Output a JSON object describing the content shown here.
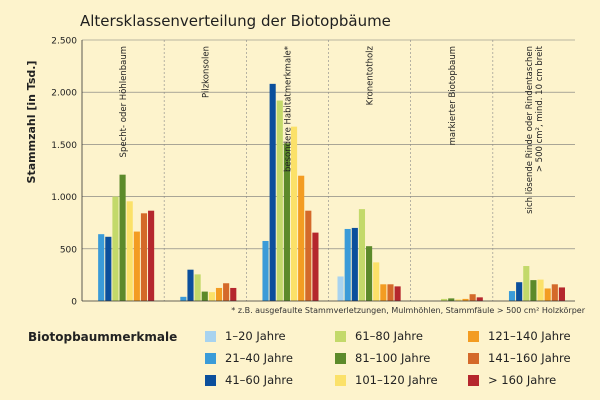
{
  "chart_data": {
    "type": "bar",
    "title": "Altersklassenverteilung der Biotopbäume",
    "ylabel": "Stammzahl [in Tsd.]",
    "xlabel": "",
    "ylim": [
      0,
      2500
    ],
    "yticks": [
      0,
      500,
      1000,
      1500,
      2000,
      2500
    ],
    "ytick_labels": [
      "0",
      "500",
      "1.000",
      "1.500",
      "2.000",
      "2.500"
    ],
    "grid": true,
    "categories": [
      "Specht- oder Höhlenbaum",
      "Pilzkonsolen",
      "besondere Habitatmerkmale*",
      "Kronentotholz",
      "markierter Biotopbaum",
      "sich lösende Rinde oder Rindentaschen > 500 cm², mind. 10 cm breit"
    ],
    "category_label_lines": [
      [
        "Specht- oder Höhlenbaum"
      ],
      [
        "Pilzkonsolen"
      ],
      [
        "besondere Habitatmerkmale*"
      ],
      [
        "Kronentotholz"
      ],
      [
        "markierter Biotopbaum"
      ],
      [
        "sich lösende Rinde oder Rindentaschen",
        "> 500 cm², mind. 10 cm breit"
      ]
    ],
    "footnote": "* z.B. ausgefaulte Stammverletzungen, Mulmhöhlen, Stammfäule > 500 cm² Holzkörper",
    "legend_title": "Biotopbaummerkmale",
    "legend_placement": "bottom",
    "series": [
      {
        "name": "1–20 Jahre",
        "color": "#a8d3ef",
        "values": [
          0,
          0,
          0,
          235,
          0,
          0
        ]
      },
      {
        "name": "21–40 Jahre",
        "color": "#3a9bd8",
        "values": [
          640,
          40,
          575,
          690,
          0,
          95
        ]
      },
      {
        "name": "41–60 Jahre",
        "color": "#0b4f9c",
        "values": [
          615,
          300,
          2080,
          700,
          0,
          180
        ]
      },
      {
        "name": "61–80 Jahre",
        "color": "#c3d96a",
        "values": [
          1000,
          255,
          1920,
          880,
          20,
          335
        ]
      },
      {
        "name": "81–100 Jahre",
        "color": "#5c8a2a",
        "values": [
          1210,
          90,
          1510,
          525,
          25,
          200
        ]
      },
      {
        "name": "101–120 Jahre",
        "color": "#fbe169",
        "values": [
          955,
          85,
          1670,
          370,
          15,
          205
        ]
      },
      {
        "name": "121–140 Jahre",
        "color": "#f39c22",
        "values": [
          665,
          125,
          1200,
          160,
          20,
          120
        ]
      },
      {
        "name": "141–160 Jahre",
        "color": "#d4692a",
        "values": [
          840,
          170,
          865,
          160,
          65,
          160
        ]
      },
      {
        "name": "> 160 Jahre",
        "color": "#b5272d",
        "values": [
          865,
          125,
          655,
          140,
          35,
          130
        ]
      }
    ]
  }
}
